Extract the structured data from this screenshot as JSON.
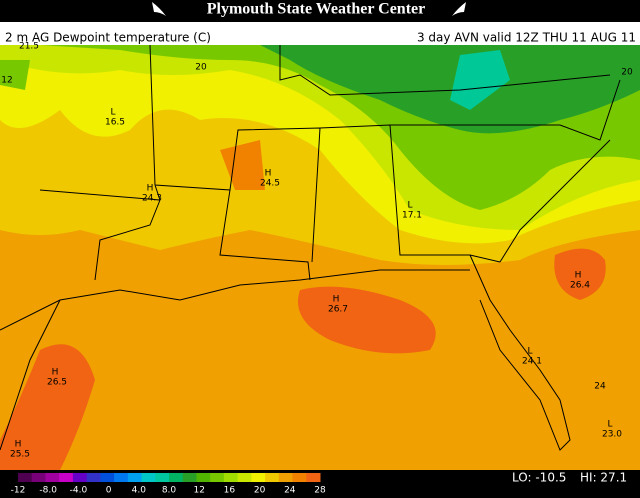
{
  "header": {
    "title": "Plymouth State Weather Center",
    "field": "2 m AG Dewpoint temperature (C)",
    "valid": "3 day AVN valid 12Z THU 11 AUG 11"
  },
  "map_labels": [
    {
      "value": "21.5"
    },
    {
      "value": "20"
    },
    {
      "mark": "L",
      "value": "16.5"
    },
    {
      "mark": "H",
      "value": "24.3"
    },
    {
      "mark": "H",
      "value": "24.5"
    },
    {
      "mark": "L",
      "value": "17.1"
    },
    {
      "mark": "H",
      "value": "26.7"
    },
    {
      "mark": "H",
      "value": "26.4"
    },
    {
      "mark": "L",
      "value": "24.1"
    },
    {
      "mark": "H",
      "value": "26.5"
    },
    {
      "mark": "H",
      "value": "25.5"
    },
    {
      "value": "24"
    },
    {
      "mark": "L",
      "value": "23.0"
    },
    {
      "value": "20"
    },
    {
      "value": "12"
    }
  ],
  "legend": {
    "labels": [
      "-12",
      "-8.0",
      "-4.0",
      "0",
      "4.0",
      "8.0",
      "12",
      "16",
      "20",
      "24",
      "28"
    ],
    "colors": [
      "#500050",
      "#780078",
      "#a000a0",
      "#c800c8",
      "#6400c8",
      "#3232c8",
      "#0050dc",
      "#0078f0",
      "#00a0f0",
      "#00c8c8",
      "#00c8a0",
      "#00b464",
      "#28a028",
      "#50b400",
      "#78c800",
      "#a0dc00",
      "#c8e600",
      "#f0f000",
      "#f0c800",
      "#f0a000",
      "#f08200",
      "#f06414"
    ],
    "lo": "LO: -10.5",
    "hi": "HI: 27.1"
  }
}
